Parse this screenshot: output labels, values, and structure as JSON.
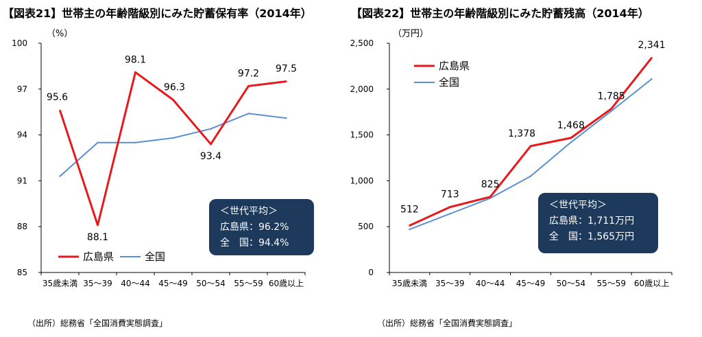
{
  "left": {
    "title": "【図表21】世帯主の年齢階級別にみた貯蓄保有率（2014年）",
    "source": "（出所）総務省「全国消費実態調査」",
    "chart_data": {
      "type": "line",
      "title": "【図表21】世帯主の年齢階級別にみた貯蓄保有率（2014年）",
      "unit": "（%）",
      "categories": [
        "35歳未満",
        "35～39",
        "40～44",
        "45～49",
        "50～54",
        "55～59",
        "60歳以上"
      ],
      "ylim": [
        85,
        100
      ],
      "yticks": [
        "85",
        "88",
        "91",
        "94",
        "97",
        "100"
      ],
      "yticks_values": [
        85,
        88,
        91,
        94,
        97,
        100
      ],
      "grid": false,
      "legend_position": "bottom-left",
      "series": [
        {
          "name": "広島県",
          "color": "#e8191c",
          "labeled": true,
          "values": [
            95.6,
            88.1,
            98.1,
            96.3,
            93.4,
            97.2,
            97.5
          ],
          "labels": [
            "95.6",
            "88.1",
            "98.1",
            "96.3",
            "93.4",
            "97.2",
            "97.5"
          ]
        },
        {
          "name": "全国",
          "color": "#5b8fd1",
          "labeled": false,
          "values": [
            91.3,
            93.5,
            93.5,
            93.8,
            94.4,
            95.4,
            95.1
          ]
        }
      ]
    },
    "box": {
      "title": "＜世代平均＞",
      "line1": "広島県：96.2%",
      "line2": "全　国：94.4%"
    }
  },
  "right": {
    "title": "【図表22】世帯主の年齢階級別にみた貯蓄残高（2014年）",
    "source": "（出所）総務省「全国消費実態調査」",
    "chart_data": {
      "type": "line",
      "title": "【図表22】世帯主の年齢階級別にみた貯蓄残高（2014年）",
      "unit": "（万円）",
      "categories": [
        "35歳未満",
        "35～39",
        "40～44",
        "45～49",
        "50～54",
        "55～59",
        "60歳以上"
      ],
      "ylim": [
        0,
        2500
      ],
      "yticks": [
        "0",
        "500",
        "1,000",
        "1,500",
        "2,000",
        "2,500"
      ],
      "yticks_values": [
        0,
        500,
        1000,
        1500,
        2000,
        2500
      ],
      "grid": false,
      "legend_position": "top-left",
      "series": [
        {
          "name": "広島県",
          "color": "#e8191c",
          "labeled": true,
          "values": [
            512,
            713,
            825,
            1378,
            1468,
            1785,
            2341
          ],
          "labels": [
            "512",
            "713",
            "825",
            "1,378",
            "1,468",
            "1,785",
            "2,341"
          ]
        },
        {
          "name": "全国",
          "color": "#5b8fd1",
          "labeled": false,
          "values": [
            470,
            640,
            810,
            1050,
            1420,
            1760,
            2110
          ]
        }
      ]
    },
    "box": {
      "title": "＜世代平均＞",
      "line1": "広島県：1,711万円",
      "line2": "全　国：1,565万円"
    }
  }
}
